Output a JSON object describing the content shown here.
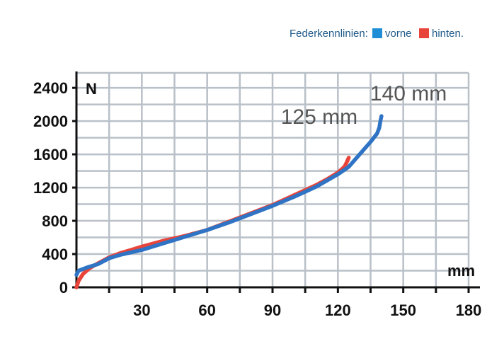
{
  "legend": {
    "title": "Federkennlinien:",
    "items": [
      {
        "label": "vorne",
        "color": "#1e8fd6"
      },
      {
        "label": "hinten.",
        "color": "#e8443a"
      }
    ]
  },
  "chart_data": {
    "type": "line",
    "title": "",
    "xlabel": "mm",
    "ylabel": "N",
    "xlim": [
      0,
      180
    ],
    "ylim": [
      0,
      2400
    ],
    "x_ticks": [
      30,
      60,
      90,
      120,
      150,
      180
    ],
    "x_tick_labels": [
      "30",
      "60",
      "90",
      "120",
      "150",
      "180"
    ],
    "y_ticks": [
      0,
      400,
      800,
      1200,
      1600,
      2000,
      2400
    ],
    "y_tick_labels": [
      "0",
      "400",
      "800",
      "1200",
      "1600",
      "2000",
      "2400"
    ],
    "grid": true,
    "legend_position": "top-right",
    "series": [
      {
        "name": "hinten.",
        "color": "#e8443a",
        "x": [
          0,
          1,
          3,
          6,
          10,
          15,
          20,
          25,
          30,
          40,
          50,
          60,
          70,
          80,
          90,
          100,
          110,
          115,
          120,
          123,
          124,
          125
        ],
        "y": [
          0,
          80,
          160,
          230,
          290,
          360,
          410,
          450,
          490,
          560,
          620,
          690,
          790,
          890,
          990,
          1110,
          1230,
          1300,
          1380,
          1450,
          1500,
          1560
        ]
      },
      {
        "name": "vorne",
        "color": "#2f74c4",
        "x": [
          0,
          1,
          2,
          5,
          10,
          15,
          20,
          30,
          40,
          50,
          60,
          70,
          80,
          90,
          100,
          110,
          120,
          125,
          130,
          135,
          138,
          139,
          139.5,
          140
        ],
        "y": [
          150,
          200,
          210,
          240,
          280,
          350,
          390,
          450,
          530,
          610,
          690,
          780,
          880,
          980,
          1090,
          1210,
          1360,
          1450,
          1600,
          1750,
          1850,
          1920,
          2000,
          2060
        ]
      }
    ],
    "annotations": [
      {
        "text": "125 mm",
        "x": 125,
        "y": 1560
      },
      {
        "text": "140 mm",
        "x": 140,
        "y": 2060
      }
    ]
  }
}
